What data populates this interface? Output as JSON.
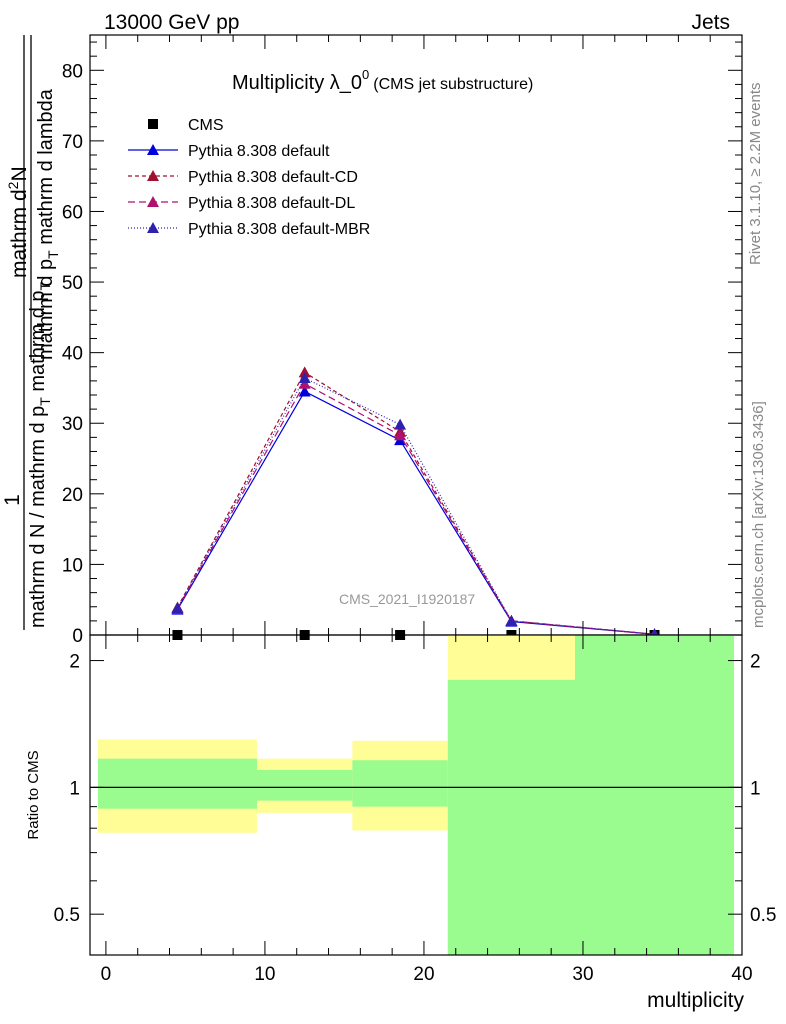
{
  "header": {
    "left": "13000 GeV pp",
    "right": "Jets"
  },
  "side_labels": {
    "rivet": "Rivet 3.1.10, ≥ 2.2M events",
    "mcplots": "mcplots.cern.ch [arXiv:1306.3436]"
  },
  "chart_data": {
    "type": "line",
    "title": "Multiplicity λ_0",
    "title_superscript": "0",
    "title_note": "(CMS jet substructure)",
    "watermark": "CMS_2021_I1920187",
    "ylabel_top": {
      "numerator": "mathrm d",
      "numerator_sup": "2",
      "numerator_end": "N",
      "denominator_part1": "mathrm d p",
      "denominator_part1_sub": "T",
      "denominator_part2": " mathrm d lambda",
      "prefix_numerator": "1",
      "prefix_denominator_part1": "mathrm d N / mathrm d p",
      "prefix_denominator_sub": "T",
      "prefix_denominator_part2": " mathrm d p",
      "prefix_denominator_sub2": "T"
    },
    "ylabel_bottom": "Ratio to CMS",
    "xlabel": "multiplicity",
    "xlim": [
      -1,
      40
    ],
    "ylim_top": [
      0,
      85
    ],
    "yticks_top": [
      0,
      10,
      20,
      30,
      40,
      50,
      60,
      70,
      80
    ],
    "ylim_ratio": [
      0.4,
      2.3
    ],
    "yticks_ratio": [
      0.5,
      1,
      2
    ],
    "xticks": [
      0,
      10,
      20,
      30,
      40
    ],
    "bins": [
      {
        "lo": -0.5,
        "hi": 9.5
      },
      {
        "lo": 9.5,
        "hi": 15.5
      },
      {
        "lo": 15.5,
        "hi": 21.5
      },
      {
        "lo": 21.5,
        "hi": 29.5
      },
      {
        "lo": 29.5,
        "hi": 39.5
      }
    ],
    "x_centers": [
      4.5,
      12.5,
      18.5,
      25.5,
      34.5
    ],
    "legend": {
      "placement": "top-left"
    },
    "series": [
      {
        "name": "CMS",
        "marker": "square",
        "color": "#000000",
        "dash": "none",
        "values": [
          0.0,
          0.0,
          0.0,
          0.0,
          0.0
        ]
      },
      {
        "name": "Pythia 8.308 default",
        "marker": "triangle",
        "color": "#0000dd",
        "dash": "solid",
        "values": [
          3.6,
          34.5,
          27.6,
          1.9,
          0.1
        ]
      },
      {
        "name": "Pythia 8.308 default-CD",
        "marker": "triangle",
        "color": "#a01030",
        "dash": "4,3",
        "values": [
          3.9,
          37.2,
          28.8,
          2.0,
          0.1
        ]
      },
      {
        "name": "Pythia 8.308 default-DL",
        "marker": "triangle",
        "color": "#b01070",
        "dash": "7,4",
        "values": [
          3.7,
          35.6,
          28.3,
          2.0,
          0.1
        ]
      },
      {
        "name": "Pythia 8.308 default-MBR",
        "marker": "triangle",
        "color": "#3020b0",
        "dash": "1,2",
        "values": [
          3.8,
          36.4,
          29.8,
          2.0,
          0.1
        ]
      }
    ],
    "ratio_bands": {
      "yellow": [
        [
          0.78,
          1.3
        ],
        [
          0.87,
          1.17
        ],
        [
          0.79,
          1.29
        ],
        [
          0.4,
          2.3
        ],
        [
          0.4,
          2.3
        ]
      ],
      "green": [
        [
          0.89,
          1.17
        ],
        [
          0.93,
          1.1
        ],
        [
          0.9,
          1.16
        ],
        [
          0.4,
          1.8
        ],
        [
          0.4,
          2.3
        ]
      ],
      "yellow_color": "#fffe96",
      "green_color": "#9afb8f"
    }
  }
}
